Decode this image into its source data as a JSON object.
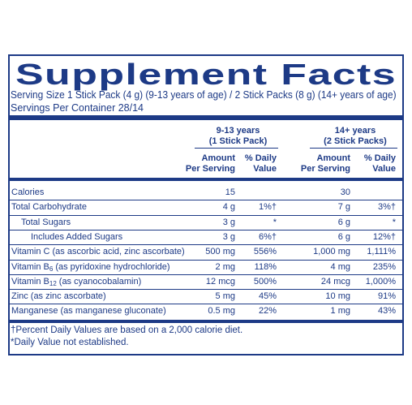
{
  "title": "Supplement Facts",
  "serving_size": "Serving Size 1 Stick Pack (4 g) (9-13 years of age) / 2 Stick Packs (8 g) (14+ years of age)",
  "servings_per_container": "Servings Per Container 28/14",
  "groups": [
    {
      "title": "9-13 years",
      "subtitle": "(1 Stick Pack)"
    },
    {
      "title": "14+ years",
      "subtitle": "(2 Stick Packs)"
    }
  ],
  "column_headers": {
    "amount": [
      "Amount",
      "Per Serving"
    ],
    "daily_value": [
      "% Daily",
      "Value"
    ]
  },
  "rows": [
    {
      "label": "Calories",
      "indent": 0,
      "amounts": [
        "15",
        "30"
      ]
    },
    {
      "label": "Total Carbohydrate",
      "indent": 0,
      "amounts": [
        "4 g",
        "7 g"
      ],
      "daily_values": [
        "1%†",
        "3%†"
      ]
    },
    {
      "label": "Total Sugars",
      "indent": 1,
      "amounts": [
        "3 g",
        "6 g"
      ],
      "daily_values": [
        "*",
        "*"
      ]
    },
    {
      "label": "Includes Added Sugars",
      "indent": 2,
      "amounts": [
        "3 g",
        "6 g"
      ],
      "daily_values": [
        "6%†",
        "12%†"
      ]
    },
    {
      "label": "Vitamin C",
      "detail": "(as ascorbic acid, zinc ascorbate)",
      "indent": 0,
      "amounts": [
        "500 mg",
        "1,000 mg"
      ],
      "daily_values": [
        "556%",
        "1,111%"
      ]
    },
    {
      "label": "Vitamin B",
      "sub": "6",
      "detail": "(as pyridoxine hydrochloride)",
      "indent": 0,
      "amounts": [
        "2 mg",
        "4 mg"
      ],
      "daily_values": [
        "118%",
        "235%"
      ]
    },
    {
      "label": "Vitamin B",
      "sub": "12",
      "detail": "(as cyanocobalamin)",
      "indent": 0,
      "amounts": [
        "12 mcg",
        "24 mcg"
      ],
      "daily_values": [
        "500%",
        "1,000%"
      ]
    },
    {
      "label": "Zinc",
      "detail": "(as zinc ascorbate)",
      "indent": 0,
      "amounts": [
        "5 mg",
        "10 mg"
      ],
      "daily_values": [
        "45%",
        "91%"
      ]
    },
    {
      "label": "Manganese",
      "detail": "(as manganese gluconate)",
      "indent": 0,
      "amounts": [
        "0.5 mg",
        "1 mg"
      ],
      "daily_values": [
        "22%",
        "43%"
      ]
    }
  ],
  "footnotes": [
    "†Percent Daily Values are based on a 2,000 calorie diet.",
    "*Daily Value not established."
  ]
}
